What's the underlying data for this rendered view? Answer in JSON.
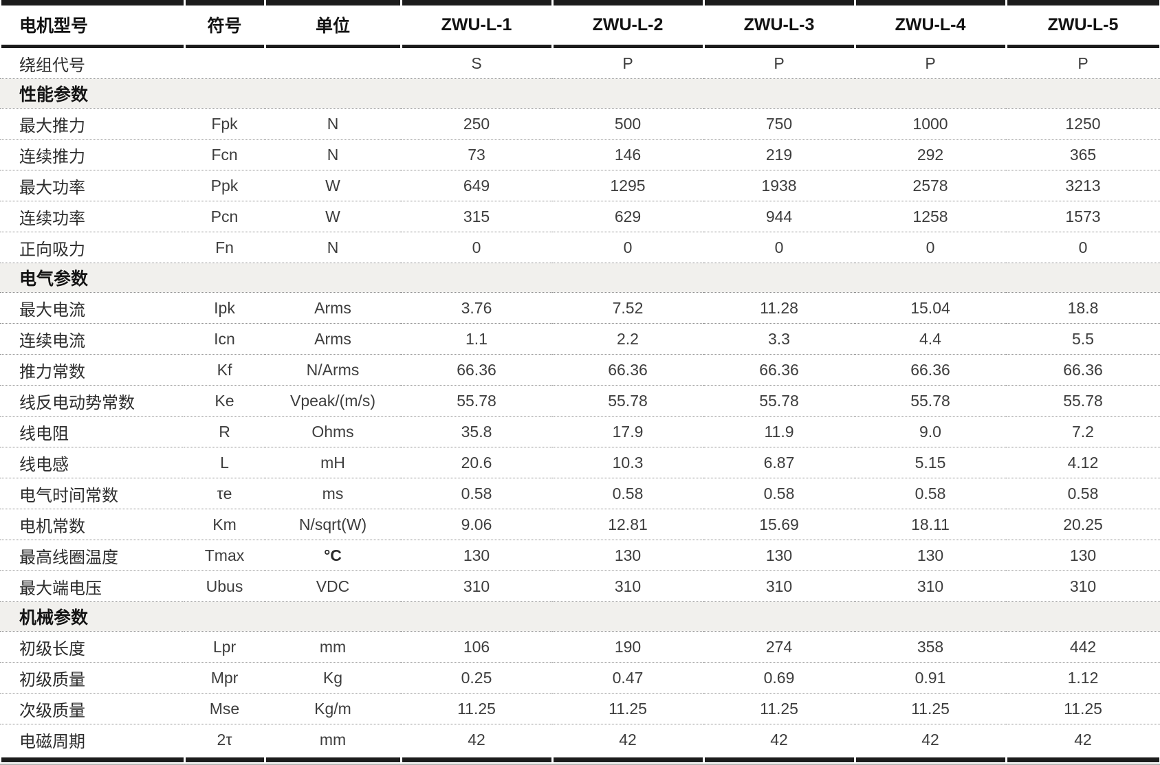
{
  "table": {
    "columns": [
      "电机型号",
      "符号",
      "单位",
      "ZWU-L-1",
      "ZWU-L-2",
      "ZWU-L-3",
      "ZWU-L-4",
      "ZWU-L-5"
    ],
    "rows": [
      {
        "type": "data",
        "label": "绕组代号",
        "symbol": "",
        "unit": "",
        "values": [
          "S",
          "P",
          "P",
          "P",
          "P"
        ]
      },
      {
        "type": "section",
        "label": "性能参数"
      },
      {
        "type": "data",
        "label": "最大推力",
        "symbol": "Fpk",
        "unit": "N",
        "values": [
          "250",
          "500",
          "750",
          "1000",
          "1250"
        ]
      },
      {
        "type": "data",
        "label": "连续推力",
        "symbol": "Fcn",
        "unit": "N",
        "values": [
          "73",
          "146",
          "219",
          "292",
          "365"
        ]
      },
      {
        "type": "data",
        "label": "最大功率",
        "symbol": "Ppk",
        "unit": "W",
        "values": [
          "649",
          "1295",
          "1938",
          "2578",
          "3213"
        ]
      },
      {
        "type": "data",
        "label": "连续功率",
        "symbol": "Pcn",
        "unit": "W",
        "values": [
          "315",
          "629",
          "944",
          "1258",
          "1573"
        ]
      },
      {
        "type": "data",
        "label": "正向吸力",
        "symbol": "Fn",
        "unit": "N",
        "values": [
          "0",
          "0",
          "0",
          "0",
          "0"
        ]
      },
      {
        "type": "section",
        "label": "电气参数"
      },
      {
        "type": "data",
        "label": "最大电流",
        "symbol": "Ipk",
        "unit": "Arms",
        "values": [
          "3.76",
          "7.52",
          "11.28",
          "15.04",
          "18.8"
        ]
      },
      {
        "type": "data",
        "label": "连续电流",
        "symbol": "Icn",
        "unit": "Arms",
        "values": [
          "1.1",
          "2.2",
          "3.3",
          "4.4",
          "5.5"
        ]
      },
      {
        "type": "data",
        "label": "推力常数",
        "symbol": "Kf",
        "unit": "N/Arms",
        "values": [
          "66.36",
          "66.36",
          "66.36",
          "66.36",
          "66.36"
        ]
      },
      {
        "type": "data",
        "label": "线反电动势常数",
        "symbol": "Ke",
        "unit": "Vpeak/(m/s)",
        "values": [
          "55.78",
          "55.78",
          "55.78",
          "55.78",
          "55.78"
        ]
      },
      {
        "type": "data",
        "label": "线电阻",
        "symbol": "R",
        "unit": "Ohms",
        "values": [
          "35.8",
          "17.9",
          "11.9",
          "9.0",
          "7.2"
        ]
      },
      {
        "type": "data",
        "label": "线电感",
        "symbol": "L",
        "unit": "mH",
        "values": [
          "20.6",
          "10.3",
          "6.87",
          "5.15",
          "4.12"
        ]
      },
      {
        "type": "data",
        "label": "电气时间常数",
        "symbol": "τe",
        "unit": "ms",
        "values": [
          "0.58",
          "0.58",
          "0.58",
          "0.58",
          "0.58"
        ]
      },
      {
        "type": "data",
        "label": "电机常数",
        "symbol": "Km",
        "unit": "N/sqrt(W)",
        "values": [
          "9.06",
          "12.81",
          "15.69",
          "18.11",
          "20.25"
        ]
      },
      {
        "type": "data",
        "label": "最高线圈温度",
        "symbol": "Tmax",
        "unit": "°C",
        "values": [
          "130",
          "130",
          "130",
          "130",
          "130"
        ]
      },
      {
        "type": "data",
        "label": "最大端电压",
        "symbol": "Ubus",
        "unit": "VDC",
        "values": [
          "310",
          "310",
          "310",
          "310",
          "310"
        ]
      },
      {
        "type": "section",
        "label": "机械参数"
      },
      {
        "type": "data",
        "label": "初级长度",
        "symbol": "Lpr",
        "unit": "mm",
        "values": [
          "106",
          "190",
          "274",
          "358",
          "442"
        ]
      },
      {
        "type": "data",
        "label": "初级质量",
        "symbol": "Mpr",
        "unit": "Kg",
        "values": [
          "0.25",
          "0.47",
          "0.69",
          "0.91",
          "1.12"
        ]
      },
      {
        "type": "data",
        "label": "次级质量",
        "symbol": "Mse",
        "unit": "Kg/m",
        "values": [
          "11.25",
          "11.25",
          "11.25",
          "11.25",
          "11.25"
        ]
      },
      {
        "type": "data",
        "label": "电磁周期",
        "symbol": "2τ",
        "unit": "mm",
        "values": [
          "42",
          "42",
          "42",
          "42",
          "42"
        ]
      }
    ]
  },
  "colors": {
    "heavy_rule": "#1c1c1c",
    "dotted_rule": "#8f8f8f",
    "section_background": "#f1f0ed",
    "bottom_thin_rule": "#b6b6b4",
    "body_text": "#3d3d3d",
    "header_text": "#121212"
  }
}
